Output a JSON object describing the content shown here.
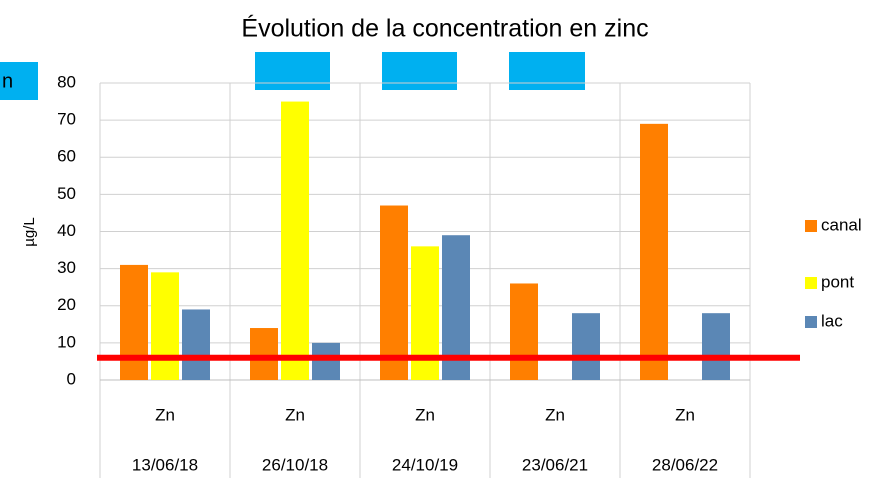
{
  "chart_data": {
    "type": "bar",
    "title": "Évolution de la concentration en zinc",
    "y_label": "µg/L",
    "categories": [
      "Zn",
      "Zn",
      "Zn",
      "Zn",
      "Zn"
    ],
    "dates": [
      "13/06/18",
      "26/10/18",
      "24/10/19",
      "23/06/21",
      "28/06/22"
    ],
    "series": [
      {
        "name": "canal",
        "color": "#ff7f00",
        "values": [
          31,
          14,
          47,
          26,
          69
        ]
      },
      {
        "name": "pont",
        "color": "#ffff00",
        "values": [
          29,
          75,
          36,
          null,
          null
        ]
      },
      {
        "name": "lac",
        "color": "#5b87b5",
        "values": [
          19,
          10,
          39,
          18,
          18
        ]
      }
    ],
    "ylim": [
      0,
      80
    ],
    "yticks": [
      0,
      10,
      20,
      30,
      40,
      50,
      60,
      70,
      80
    ],
    "grid": true,
    "legend": "right",
    "reference_line": {
      "value": 6,
      "color": "#ff0000"
    },
    "annotation": "n"
  }
}
